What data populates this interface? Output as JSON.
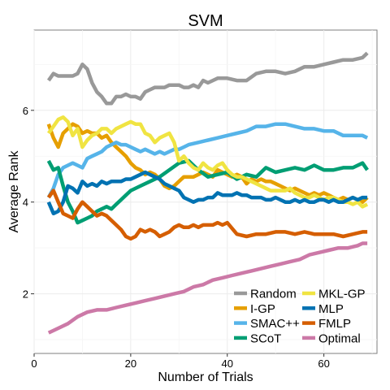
{
  "chart_data": {
    "type": "line",
    "title": "SVM",
    "xlabel": "Number of Trials",
    "ylabel": "Average Rank",
    "xlim": [
      0,
      71
    ],
    "ylim": [
      0.7,
      7.75
    ],
    "xticks": [
      0,
      20,
      40,
      60
    ],
    "yticks": [
      2,
      4,
      6
    ],
    "grid": true,
    "legend_position": "bottom-right",
    "series": [
      {
        "name": "Random",
        "color": "#999999",
        "x": [
          3,
          4,
          5,
          7,
          8,
          9,
          10,
          11,
          12,
          13,
          14,
          15,
          16,
          17,
          18,
          19,
          20,
          21,
          22,
          23,
          24,
          25,
          26,
          27,
          28,
          29,
          30,
          31,
          32,
          33,
          34,
          35,
          36,
          37,
          38,
          40,
          42,
          44,
          46,
          48,
          50,
          52,
          54,
          56,
          58,
          60,
          62,
          64,
          66,
          68,
          69
        ],
        "y": [
          6.65,
          6.8,
          6.75,
          6.75,
          6.75,
          6.8,
          7.0,
          6.9,
          6.6,
          6.4,
          6.3,
          6.15,
          6.15,
          6.3,
          6.3,
          6.35,
          6.3,
          6.3,
          6.25,
          6.4,
          6.45,
          6.5,
          6.5,
          6.5,
          6.55,
          6.55,
          6.55,
          6.5,
          6.5,
          6.55,
          6.5,
          6.65,
          6.6,
          6.65,
          6.7,
          6.7,
          6.65,
          6.65,
          6.8,
          6.85,
          6.85,
          6.8,
          6.85,
          6.95,
          6.95,
          7.0,
          7.05,
          7.1,
          7.1,
          7.15,
          7.25
        ]
      },
      {
        "name": "I-GP",
        "color": "#E69F00",
        "x": [
          3,
          4,
          5,
          6,
          7,
          8,
          9,
          10,
          11,
          12,
          13,
          14,
          15,
          16,
          17,
          18,
          19,
          20,
          21,
          22,
          23,
          24,
          25,
          26,
          27,
          28,
          29,
          30,
          31,
          32,
          33,
          34,
          35,
          36,
          37,
          38,
          39,
          40,
          41,
          42,
          43,
          44,
          45,
          46,
          47,
          48,
          49,
          50,
          51,
          52,
          53,
          54,
          55,
          56,
          57,
          58,
          59,
          60,
          61,
          62,
          63,
          64,
          65,
          66,
          67,
          68,
          69
        ],
        "y": [
          5.7,
          5.4,
          5.2,
          5.5,
          5.6,
          5.7,
          5.65,
          5.5,
          5.55,
          5.5,
          5.5,
          5.4,
          5.45,
          5.3,
          5.2,
          5.1,
          5.0,
          4.85,
          4.75,
          4.7,
          4.6,
          4.65,
          4.6,
          4.5,
          4.35,
          4.3,
          4.35,
          4.45,
          4.55,
          4.55,
          4.55,
          4.6,
          4.65,
          4.6,
          4.55,
          4.7,
          4.65,
          4.6,
          4.55,
          4.6,
          4.55,
          4.4,
          4.5,
          4.45,
          4.5,
          4.45,
          4.45,
          4.4,
          4.35,
          4.3,
          4.25,
          4.3,
          4.25,
          4.2,
          4.15,
          4.2,
          4.15,
          4.2,
          4.15,
          4.1,
          4.05,
          4.1,
          4.05,
          4.1,
          4.05,
          4.0,
          4.1
        ]
      },
      {
        "name": "SMAC++",
        "color": "#56B4E9",
        "x": [
          3,
          4,
          5,
          6,
          7,
          8,
          9,
          10,
          11,
          12,
          13,
          14,
          15,
          16,
          17,
          18,
          19,
          20,
          21,
          22,
          23,
          24,
          25,
          26,
          27,
          28,
          29,
          30,
          31,
          32,
          34,
          36,
          38,
          40,
          42,
          44,
          46,
          48,
          50,
          52,
          54,
          56,
          58,
          60,
          62,
          64,
          66,
          68,
          69
        ],
        "y": [
          4.1,
          4.3,
          4.6,
          4.75,
          4.8,
          4.85,
          4.8,
          4.75,
          4.95,
          5.0,
          5.05,
          5.1,
          5.2,
          5.25,
          5.3,
          5.25,
          5.25,
          5.2,
          5.15,
          5.1,
          5.15,
          5.1,
          5.05,
          5.1,
          5.05,
          5.1,
          5.15,
          5.15,
          5.2,
          5.25,
          5.3,
          5.35,
          5.4,
          5.45,
          5.5,
          5.55,
          5.65,
          5.65,
          5.7,
          5.7,
          5.65,
          5.6,
          5.6,
          5.55,
          5.55,
          5.45,
          5.45,
          5.45,
          5.4
        ]
      },
      {
        "name": "SCoT",
        "color": "#009E73",
        "x": [
          3,
          4,
          5,
          6,
          7,
          8,
          9,
          10,
          11,
          12,
          13,
          14,
          15,
          16,
          17,
          18,
          19,
          20,
          22,
          24,
          26,
          28,
          30,
          32,
          34,
          36,
          38,
          40,
          42,
          44,
          46,
          48,
          50,
          52,
          54,
          56,
          58,
          60,
          62,
          64,
          66,
          68,
          69
        ],
        "y": [
          4.9,
          4.7,
          4.75,
          4.35,
          4.0,
          3.8,
          3.55,
          3.6,
          3.65,
          3.7,
          3.8,
          3.85,
          3.9,
          3.85,
          3.95,
          4.05,
          4.15,
          4.25,
          4.35,
          4.45,
          4.55,
          4.7,
          4.85,
          4.9,
          4.7,
          4.55,
          4.6,
          4.65,
          4.5,
          4.6,
          4.55,
          4.75,
          4.65,
          4.7,
          4.75,
          4.7,
          4.8,
          4.7,
          4.7,
          4.75,
          4.75,
          4.85,
          4.7
        ]
      },
      {
        "name": "MKL-GP",
        "color": "#F0E442",
        "x": [
          3,
          4,
          5,
          6,
          7,
          8,
          9,
          10,
          11,
          12,
          13,
          14,
          15,
          16,
          17,
          18,
          19,
          20,
          21,
          22,
          23,
          24,
          25,
          26,
          27,
          28,
          29,
          30,
          31,
          32,
          33,
          34,
          35,
          36,
          37,
          38,
          39,
          40,
          41,
          42,
          43,
          44,
          45,
          46,
          47,
          48,
          49,
          50,
          51,
          52,
          53,
          54,
          55,
          56,
          57,
          58,
          59,
          60,
          61,
          62,
          63,
          64,
          65,
          66,
          67,
          68,
          69
        ],
        "y": [
          5.5,
          5.65,
          5.8,
          5.85,
          5.75,
          5.45,
          5.6,
          5.2,
          5.35,
          5.45,
          5.5,
          5.6,
          5.6,
          5.5,
          5.6,
          5.65,
          5.7,
          5.75,
          5.7,
          5.7,
          5.5,
          5.45,
          5.3,
          5.4,
          5.45,
          5.5,
          5.3,
          4.9,
          5.0,
          4.85,
          4.75,
          4.7,
          4.85,
          4.75,
          4.7,
          4.8,
          4.85,
          4.7,
          4.6,
          4.55,
          4.55,
          4.5,
          4.45,
          4.4,
          4.35,
          4.3,
          4.25,
          4.25,
          4.25,
          4.25,
          4.3,
          4.2,
          4.15,
          4.1,
          4.1,
          4.15,
          4.1,
          4.05,
          4.1,
          4.1,
          4.05,
          4.0,
          4.0,
          3.95,
          4.0,
          3.9,
          3.95
        ]
      },
      {
        "name": "MLP",
        "color": "#0072B2",
        "x": [
          3,
          4,
          5,
          6,
          7,
          8,
          9,
          10,
          11,
          12,
          13,
          14,
          15,
          16,
          17,
          18,
          19,
          20,
          21,
          22,
          23,
          24,
          25,
          26,
          27,
          28,
          29,
          30,
          31,
          32,
          33,
          34,
          35,
          36,
          37,
          38,
          39,
          40,
          41,
          42,
          43,
          44,
          45,
          46,
          47,
          48,
          49,
          50,
          51,
          52,
          53,
          54,
          55,
          56,
          57,
          58,
          59,
          60,
          61,
          62,
          63,
          64,
          65,
          66,
          67,
          68,
          69
        ],
        "y": [
          4.0,
          3.75,
          3.8,
          4.0,
          4.35,
          4.3,
          4.2,
          4.45,
          4.35,
          4.4,
          4.35,
          4.45,
          4.4,
          4.45,
          4.45,
          4.45,
          4.5,
          4.5,
          4.55,
          4.6,
          4.65,
          4.6,
          4.55,
          4.5,
          4.4,
          4.35,
          4.3,
          4.25,
          4.1,
          4.05,
          4.0,
          4.05,
          4.05,
          4.1,
          4.1,
          4.2,
          4.15,
          4.15,
          4.15,
          4.2,
          4.15,
          4.15,
          4.1,
          4.1,
          4.1,
          4.05,
          4.05,
          4.1,
          4.05,
          4.0,
          4.0,
          4.05,
          4.0,
          4.05,
          4.0,
          4.0,
          4.05,
          4.05,
          4.0,
          4.05,
          4.0,
          4.0,
          4.05,
          4.1,
          4.05,
          4.1,
          4.1
        ]
      },
      {
        "name": "FMLP",
        "color": "#D55E00",
        "x": [
          3,
          4,
          5,
          6,
          7,
          8,
          9,
          10,
          11,
          12,
          13,
          14,
          15,
          16,
          17,
          18,
          19,
          20,
          21,
          22,
          23,
          24,
          25,
          26,
          27,
          28,
          29,
          30,
          31,
          32,
          33,
          34,
          35,
          36,
          37,
          38,
          39,
          40,
          42,
          44,
          46,
          48,
          50,
          52,
          54,
          56,
          58,
          60,
          62,
          64,
          66,
          68,
          69
        ],
        "y": [
          4.1,
          4.25,
          4.0,
          3.75,
          3.7,
          3.65,
          3.85,
          4.0,
          3.9,
          3.8,
          3.7,
          3.75,
          3.7,
          3.6,
          3.5,
          3.4,
          3.25,
          3.2,
          3.25,
          3.4,
          3.35,
          3.4,
          3.35,
          3.25,
          3.3,
          3.35,
          3.45,
          3.5,
          3.45,
          3.45,
          3.5,
          3.45,
          3.5,
          3.5,
          3.5,
          3.55,
          3.5,
          3.55,
          3.3,
          3.25,
          3.3,
          3.3,
          3.35,
          3.35,
          3.3,
          3.35,
          3.3,
          3.3,
          3.3,
          3.25,
          3.3,
          3.35,
          3.35
        ]
      },
      {
        "name": "Optimal",
        "color": "#CC79A7",
        "x": [
          3,
          5,
          7,
          9,
          11,
          13,
          15,
          17,
          19,
          21,
          23,
          25,
          27,
          29,
          31,
          33,
          35,
          37,
          39,
          41,
          43,
          45,
          47,
          49,
          51,
          53,
          55,
          57,
          59,
          61,
          63,
          65,
          67,
          68,
          69
        ],
        "y": [
          1.15,
          1.25,
          1.35,
          1.5,
          1.6,
          1.65,
          1.65,
          1.7,
          1.75,
          1.8,
          1.85,
          1.9,
          1.95,
          2.0,
          2.05,
          2.15,
          2.2,
          2.3,
          2.35,
          2.4,
          2.45,
          2.5,
          2.55,
          2.6,
          2.65,
          2.7,
          2.75,
          2.85,
          2.9,
          2.95,
          3.0,
          3.0,
          3.05,
          3.1,
          3.1
        ]
      }
    ]
  }
}
